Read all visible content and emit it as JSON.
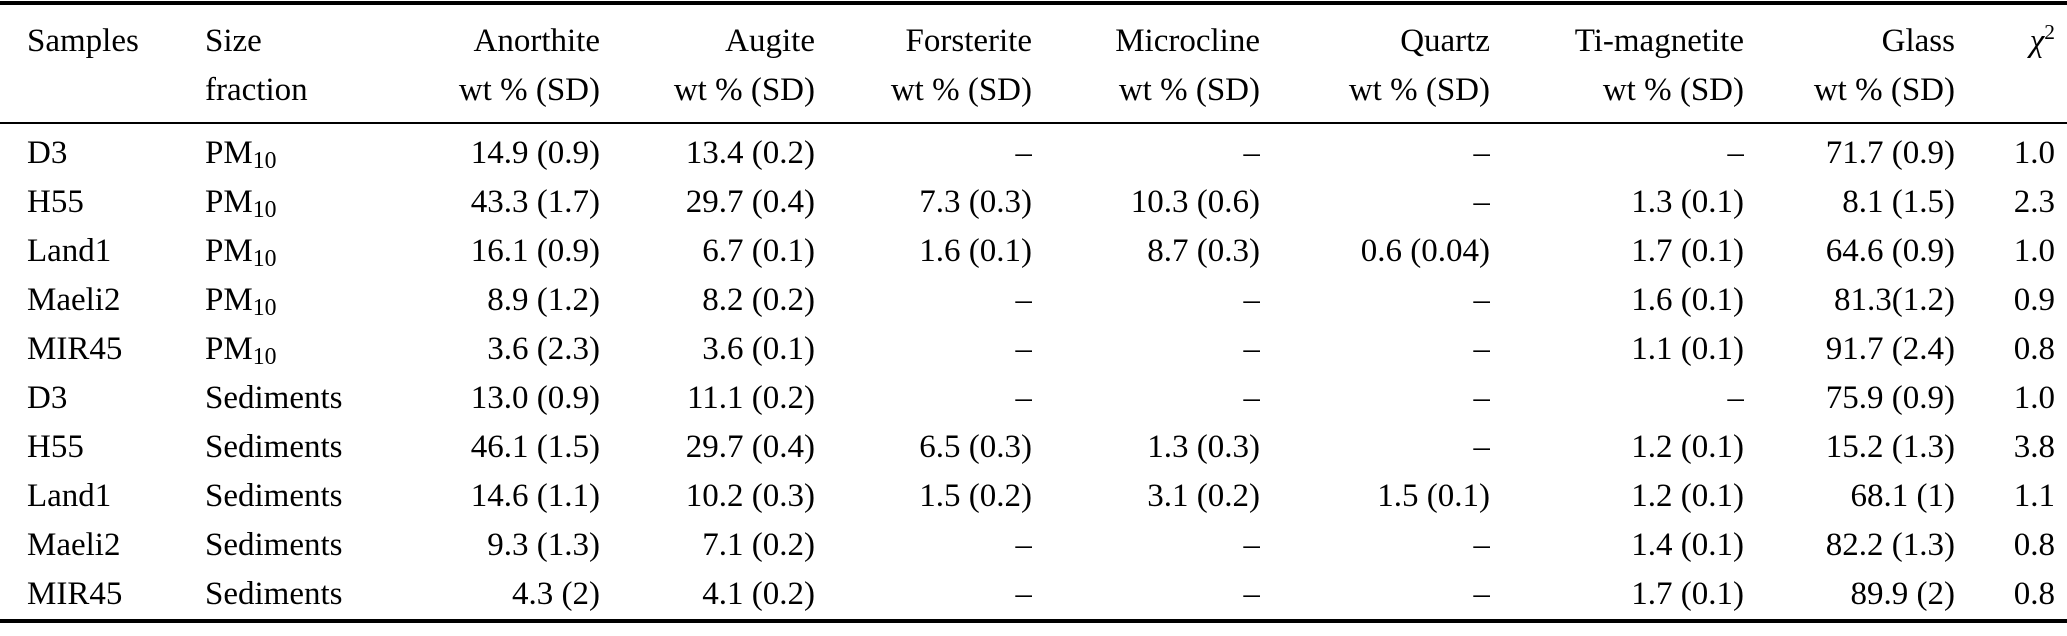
{
  "table": {
    "columns": [
      {
        "key": "samples",
        "line1": "Samples",
        "line2": "",
        "align": "left"
      },
      {
        "key": "size_fraction",
        "line1": "Size",
        "line2": "fraction",
        "align": "left"
      },
      {
        "key": "anorthite",
        "line1": "Anorthite",
        "line2": "wt % (SD)",
        "align": "right"
      },
      {
        "key": "augite",
        "line1": "Augite",
        "line2": "wt % (SD)",
        "align": "right"
      },
      {
        "key": "forsterite",
        "line1": "Forsterite",
        "line2": "wt % (SD)",
        "align": "right"
      },
      {
        "key": "microcline",
        "line1": "Microcline",
        "line2": "wt % (SD)",
        "align": "right"
      },
      {
        "key": "quartz",
        "line1": "Quartz",
        "line2": "wt % (SD)",
        "align": "right"
      },
      {
        "key": "ti_magnetite",
        "line1": "Ti-magnetite",
        "line2": "wt % (SD)",
        "align": "right"
      },
      {
        "key": "glass",
        "line1": "Glass",
        "line2": "wt % (SD)",
        "align": "right"
      },
      {
        "key": "chi_squared",
        "line1": "χ",
        "sup": "2",
        "line2": "",
        "align": "right"
      }
    ],
    "rows": [
      {
        "sample": "D3",
        "size": {
          "base": "PM",
          "sub": "10"
        },
        "values": {
          "anorthite": "14.9 (0.9)",
          "augite": "13.4 (0.2)",
          "forsterite": "–",
          "microcline": "–",
          "quartz": "–",
          "ti_magnetite": "–",
          "glass": "71.7 (0.9)",
          "chi_squared": "1.0"
        }
      },
      {
        "sample": "H55",
        "size": {
          "base": "PM",
          "sub": "10"
        },
        "values": {
          "anorthite": "43.3 (1.7)",
          "augite": "29.7 (0.4)",
          "forsterite": "7.3 (0.3)",
          "microcline": "10.3 (0.6)",
          "quartz": "–",
          "ti_magnetite": "1.3 (0.1)",
          "glass": "8.1 (1.5)",
          "chi_squared": "2.3"
        }
      },
      {
        "sample": "Land1",
        "size": {
          "base": "PM",
          "sub": "10"
        },
        "values": {
          "anorthite": "16.1 (0.9)",
          "augite": "6.7 (0.1)",
          "forsterite": "1.6 (0.1)",
          "microcline": "8.7 (0.3)",
          "quartz": "0.6 (0.04)",
          "ti_magnetite": "1.7 (0.1)",
          "glass": "64.6 (0.9)",
          "chi_squared": "1.0"
        }
      },
      {
        "sample": "Maeli2",
        "size": {
          "base": "PM",
          "sub": "10"
        },
        "values": {
          "anorthite": "8.9 (1.2)",
          "augite": "8.2 (0.2)",
          "forsterite": "–",
          "microcline": "–",
          "quartz": "–",
          "ti_magnetite": "1.6 (0.1)",
          "glass": "81.3(1.2)",
          "chi_squared": "0.9"
        }
      },
      {
        "sample": "MIR45",
        "size": {
          "base": "PM",
          "sub": "10"
        },
        "values": {
          "anorthite": "3.6 (2.3)",
          "augite": "3.6 (0.1)",
          "forsterite": "–",
          "microcline": "–",
          "quartz": "–",
          "ti_magnetite": "1.1 (0.1)",
          "glass": "91.7 (2.4)",
          "chi_squared": "0.8"
        }
      },
      {
        "sample": "D3",
        "size": {
          "base": "Sediments",
          "sub": ""
        },
        "values": {
          "anorthite": "13.0 (0.9)",
          "augite": "11.1 (0.2)",
          "forsterite": "–",
          "microcline": "–",
          "quartz": "–",
          "ti_magnetite": "–",
          "glass": "75.9 (0.9)",
          "chi_squared": "1.0"
        }
      },
      {
        "sample": "H55",
        "size": {
          "base": "Sediments",
          "sub": ""
        },
        "values": {
          "anorthite": "46.1 (1.5)",
          "augite": "29.7 (0.4)",
          "forsterite": "6.5 (0.3)",
          "microcline": "1.3 (0.3)",
          "quartz": "–",
          "ti_magnetite": "1.2 (0.1)",
          "glass": "15.2 (1.3)",
          "chi_squared": "3.8"
        }
      },
      {
        "sample": "Land1",
        "size": {
          "base": "Sediments",
          "sub": ""
        },
        "values": {
          "anorthite": "14.6 (1.1)",
          "augite": "10.2 (0.3)",
          "forsterite": "1.5 (0.2)",
          "microcline": "3.1 (0.2)",
          "quartz": "1.5 (0.1)",
          "ti_magnetite": "1.2 (0.1)",
          "glass": "68.1 (1)",
          "chi_squared": "1.1"
        }
      },
      {
        "sample": "Maeli2",
        "size": {
          "base": "Sediments",
          "sub": ""
        },
        "values": {
          "anorthite": "9.3 (1.3)",
          "augite": "7.1 (0.2)",
          "forsterite": "–",
          "microcline": "–",
          "quartz": "–",
          "ti_magnetite": "1.4 (0.1)",
          "glass": "82.2 (1.3)",
          "chi_squared": "0.8"
        }
      },
      {
        "sample": "MIR45",
        "size": {
          "base": "Sediments",
          "sub": ""
        },
        "values": {
          "anorthite": "4.3 (2)",
          "augite": "4.1 (0.2)",
          "forsterite": "–",
          "microcline": "–",
          "quartz": "–",
          "ti_magnetite": "1.7 (0.1)",
          "glass": "89.9 (2)",
          "chi_squared": "0.8"
        }
      }
    ]
  }
}
